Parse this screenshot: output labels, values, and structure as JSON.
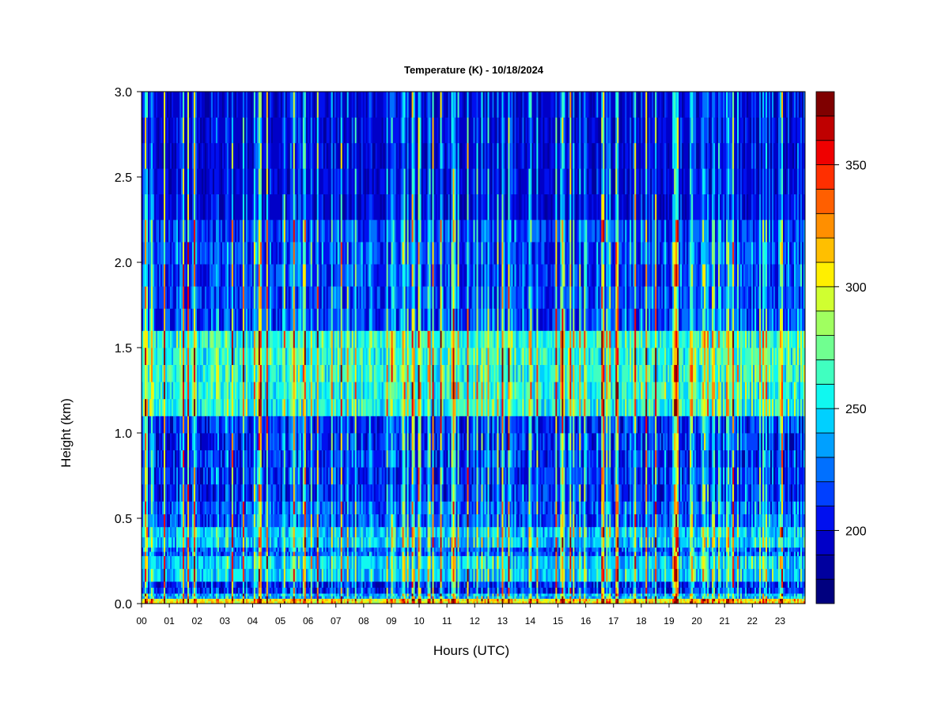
{
  "chart_data": {
    "type": "heatmap",
    "title": "Temperature (K) - 10/18/2024",
    "xlabel": "Hours (UTC)",
    "ylabel": "Height (km)",
    "x_ticks": [
      "00",
      "01",
      "02",
      "03",
      "04",
      "05",
      "06",
      "07",
      "08",
      "09",
      "10",
      "11",
      "12",
      "13",
      "14",
      "15",
      "16",
      "17",
      "18",
      "19",
      "20",
      "21",
      "22",
      "23"
    ],
    "xlim": [
      0,
      23.9
    ],
    "y_ticks": [
      "0.0",
      "0.5",
      "1.0",
      "1.5",
      "2.0",
      "2.5",
      "3.0"
    ],
    "ylim": [
      0,
      3.0
    ],
    "colorbar": {
      "range": [
        170,
        380
      ],
      "levels": 21,
      "ticks": [
        "200",
        "250",
        "300",
        "350"
      ],
      "tick_values": [
        200,
        250,
        300,
        350
      ],
      "colors": [
        "#00007f",
        "#00009f",
        "#0000c8",
        "#0010ef",
        "#0040ff",
        "#0070ff",
        "#00a0ff",
        "#00d0ff",
        "#10f8f0",
        "#40ffc0",
        "#70ff90",
        "#a0ff60",
        "#d0ff30",
        "#ffef00",
        "#ffbf00",
        "#ff8f00",
        "#ff5f00",
        "#ff2f00",
        "#ef0000",
        "#bf0000",
        "#7f0000"
      ]
    },
    "height_bands_km": [
      {
        "from": 0.0,
        "to": 0.03,
        "mean_K": 300
      },
      {
        "from": 0.03,
        "to": 0.06,
        "mean_K": 235
      },
      {
        "from": 0.06,
        "to": 0.13,
        "mean_K": 205
      },
      {
        "from": 0.13,
        "to": 0.28,
        "mean_K": 240
      },
      {
        "from": 0.28,
        "to": 0.33,
        "mean_K": 215
      },
      {
        "from": 0.33,
        "to": 0.45,
        "mean_K": 238
      },
      {
        "from": 0.45,
        "to": 0.6,
        "mean_K": 215
      },
      {
        "from": 0.6,
        "to": 1.1,
        "mean_K": 205
      },
      {
        "from": 1.1,
        "to": 1.6,
        "mean_K": 255
      },
      {
        "from": 1.6,
        "to": 2.25,
        "mean_K": 210
      },
      {
        "from": 2.25,
        "to": 3.0,
        "mean_K": 195
      }
    ]
  }
}
